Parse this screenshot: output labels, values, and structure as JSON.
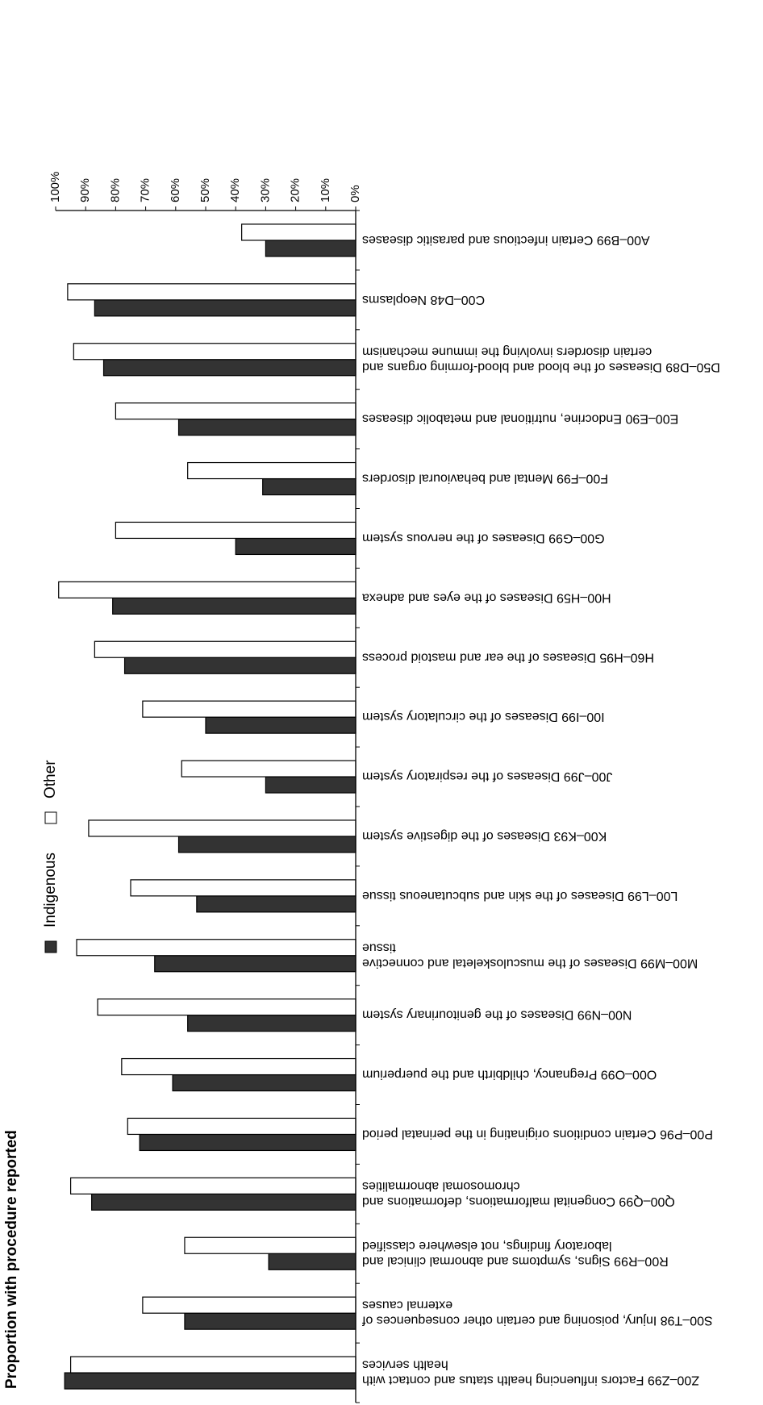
{
  "chart_data": {
    "type": "bar",
    "orientation": "horizontal",
    "rotation": "image rotated 180 degrees",
    "ylabel": "Proportion with procedure reported",
    "xlabel": "",
    "ylim": [
      0,
      100
    ],
    "value_format": "percent",
    "ticks": [
      "0%",
      "10%",
      "20%",
      "30%",
      "40%",
      "50%",
      "60%",
      "70%",
      "80%",
      "90%",
      "100%"
    ],
    "legend_position": "bottom-left (rotated)",
    "series": [
      {
        "name": "Indigenous",
        "color": "#333333",
        "values": [
          30,
          87,
          84,
          59,
          31,
          40,
          81,
          77,
          50,
          30,
          59,
          53,
          67,
          56,
          61,
          72,
          88,
          29,
          57,
          97
        ]
      },
      {
        "name": "Other",
        "color": "#ffffff",
        "values": [
          38,
          96,
          94,
          80,
          56,
          80,
          99,
          87,
          71,
          58,
          89,
          75,
          93,
          86,
          78,
          76,
          95,
          57,
          71,
          95
        ]
      }
    ],
    "categories": [
      [
        "A00–B99 Certain infectious and parasitic diseases"
      ],
      [
        "C00–D48 Neoplasms"
      ],
      [
        "D50–D89 Diseases of the blood and blood-forming organs and",
        "certain disorders involving the immune mechanism"
      ],
      [
        "E00–E90 Endocrine, nutritional and metabolic diseases"
      ],
      [
        "F00–F99 Mental and behavioural disorders"
      ],
      [
        "G00–G99 Diseases of the nervous system"
      ],
      [
        "H00–H59 Diseases of the eyes and adnexa"
      ],
      [
        "H60–H95 Diseases of the ear and mastoid process"
      ],
      [
        "I00–I99 Diseases of the circulatory system"
      ],
      [
        "J00–J99 Diseases of the respiratory system"
      ],
      [
        "K00–K93 Diseases of the digestive system"
      ],
      [
        "L00–L99 Diseases of the skin and subcutaneous tissue"
      ],
      [
        "M00–M99 Diseases of the musculoskeletal and connective",
        "tissue"
      ],
      [
        "N00–N99 Diseases of the genitourinary system"
      ],
      [
        "O00–O99 Pregnancy, childbirth and the puerperium"
      ],
      [
        "P00–P96 Certain conditions originating in the perinatal period"
      ],
      [
        "Q00–Q99 Congenital malformations, deformations and",
        "chromosomal abnormalities"
      ],
      [
        "R00–R99 Signs, symptoms and abnormal clinical and",
        "laboratory findings, not elsewhere classified"
      ],
      [
        "S00–T98 Injury, poisoning and certain other consequences of",
        "external causes"
      ],
      [
        "Z00–Z99 Factors influencing health status and contact with",
        "health services"
      ]
    ]
  }
}
